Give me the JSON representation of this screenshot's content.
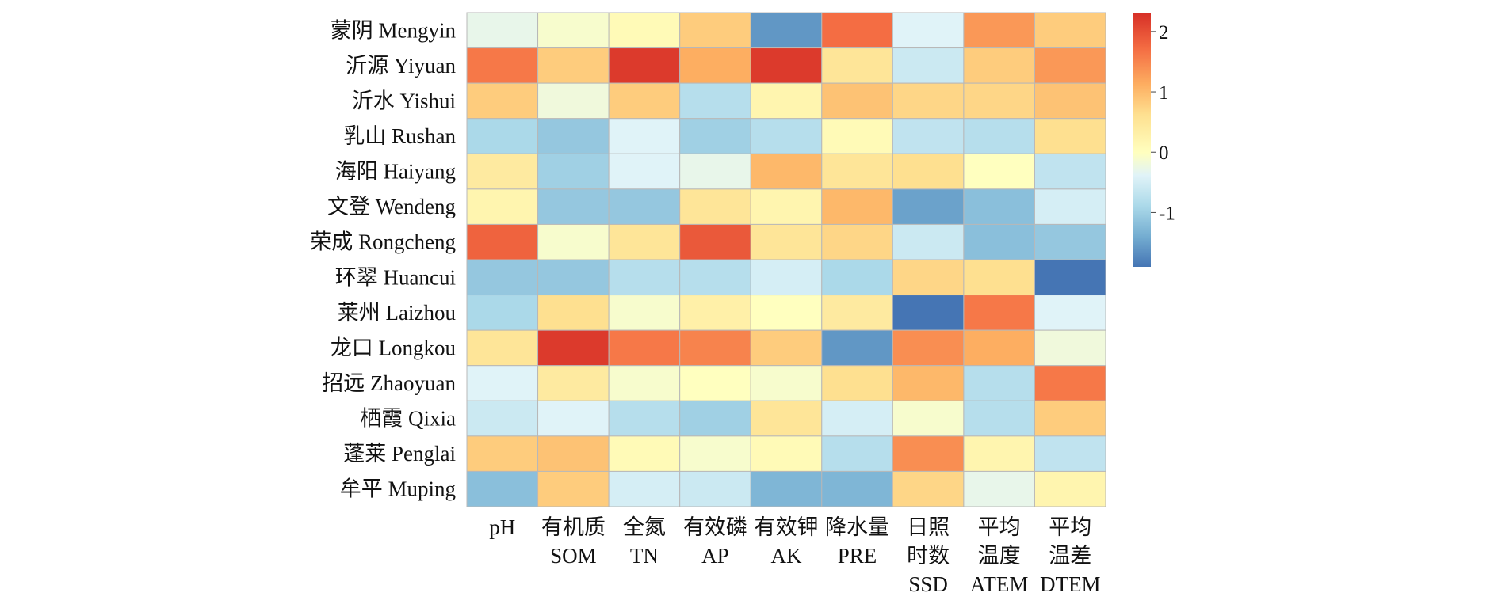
{
  "chart_data": {
    "type": "heatmap",
    "title": "",
    "xlabel": "",
    "ylabel": "",
    "rows": [
      "蒙阴 Mengyin",
      "沂源 Yiyuan",
      "沂水 Yishui",
      "乳山 Rushan",
      "海阳 Haiyang",
      "文登 Wendeng",
      "荣成 Rongcheng",
      "环翠 Huancui",
      "莱州 Laizhou",
      "龙口 Longkou",
      "招远 Zhaoyuan",
      "栖霞 Qixia",
      "蓬莱 Penglai",
      "牟平 Muping"
    ],
    "columns": [
      [
        "pH"
      ],
      [
        "有机质",
        "SOM"
      ],
      [
        "全氮",
        "TN"
      ],
      [
        "有效磷",
        "AP"
      ],
      [
        "有效钾",
        "AK"
      ],
      [
        "降水量",
        "PRE"
      ],
      [
        "日照",
        "时数",
        "SSD"
      ],
      [
        "平均",
        "温度",
        "ATEM"
      ],
      [
        "平均",
        "温差",
        "DTEM"
      ]
    ],
    "values": [
      [
        -0.3,
        -0.1,
        0.1,
        0.8,
        -1.6,
        1.7,
        -0.4,
        1.3,
        0.8
      ],
      [
        1.6,
        0.8,
        2.2,
        1.1,
        2.2,
        0.5,
        -0.6,
        0.8,
        1.3
      ],
      [
        0.8,
        -0.2,
        0.8,
        -0.8,
        0.2,
        0.9,
        0.7,
        0.7,
        0.9
      ],
      [
        -0.9,
        -1.1,
        -0.4,
        -1.0,
        -0.8,
        0.1,
        -0.7,
        -0.8,
        0.6
      ],
      [
        0.4,
        -1.0,
        -0.4,
        -0.3,
        1.0,
        0.5,
        0.6,
        0.0,
        -0.7
      ],
      [
        0.2,
        -1.1,
        -1.1,
        0.5,
        0.2,
        1.0,
        -1.5,
        -1.2,
        -0.5
      ],
      [
        1.8,
        -0.1,
        0.5,
        1.9,
        0.5,
        0.7,
        -0.6,
        -1.2,
        -1.1
      ],
      [
        -1.1,
        -1.1,
        -0.8,
        -0.8,
        -0.5,
        -0.9,
        0.7,
        0.6,
        -1.9
      ],
      [
        -0.9,
        0.6,
        -0.1,
        0.3,
        0.0,
        0.4,
        -2.0,
        1.6,
        -0.4
      ],
      [
        0.5,
        2.2,
        1.6,
        1.5,
        0.8,
        -1.6,
        1.4,
        1.1,
        -0.2
      ],
      [
        -0.4,
        0.4,
        -0.1,
        0.0,
        -0.1,
        0.6,
        1.0,
        -0.8,
        1.6
      ],
      [
        -0.6,
        -0.4,
        -0.8,
        -1.0,
        0.5,
        -0.5,
        -0.1,
        -0.8,
        0.8
      ],
      [
        0.8,
        0.9,
        0.1,
        -0.1,
        0.1,
        -0.8,
        1.4,
        0.2,
        -0.7
      ],
      [
        -1.2,
        0.8,
        -0.5,
        -0.6,
        -1.3,
        -1.3,
        0.7,
        -0.3,
        0.2
      ]
    ],
    "colorbar": {
      "min": -1.9,
      "max": 2.3,
      "ticks": [
        -1,
        0,
        1,
        2
      ]
    },
    "colors": {
      "low": "#4575b4",
      "mid": "#ffffbf",
      "high": "#d73027"
    },
    "grid": true,
    "legend": "right"
  }
}
